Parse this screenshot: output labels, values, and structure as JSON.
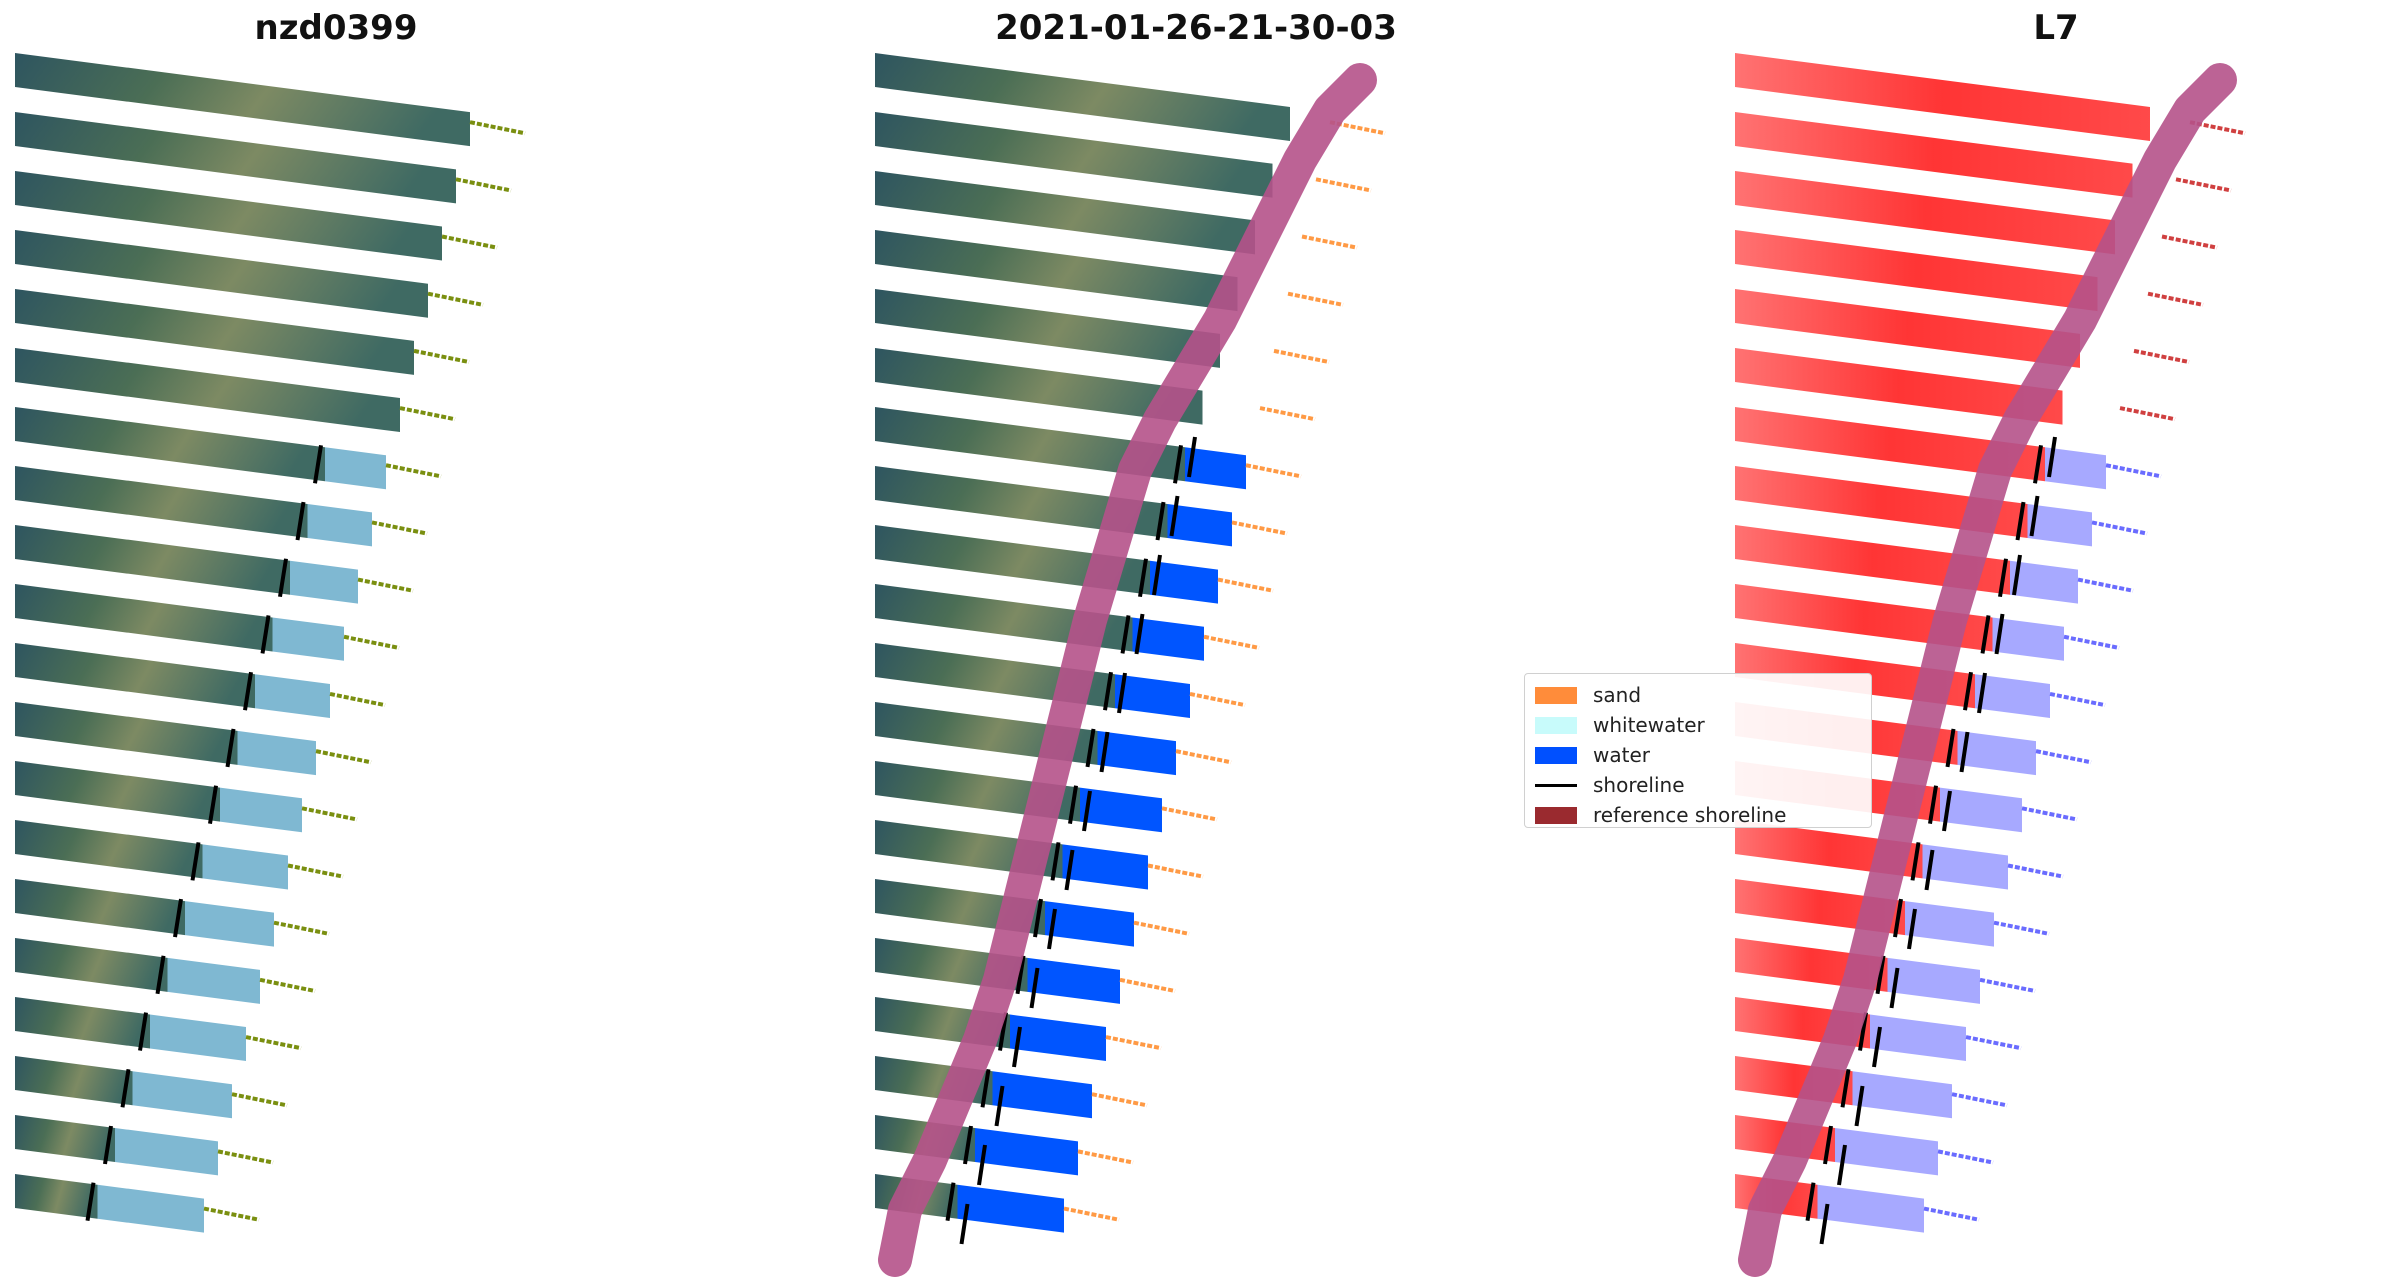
{
  "panels": [
    {
      "title": "nzd0399",
      "mode": "rgb"
    },
    {
      "title": "2021-01-26-21-30-03",
      "mode": "classified"
    },
    {
      "title": "L7",
      "mode": "mndwi"
    }
  ],
  "legend": {
    "items": [
      {
        "label": "sand",
        "color": "#ff8c3a",
        "kind": "patch"
      },
      {
        "label": "whitewater",
        "color": "#c8fbfb",
        "kind": "patch"
      },
      {
        "label": "water",
        "color": "#0050ff",
        "kind": "patch"
      },
      {
        "label": "shoreline",
        "color": "#000000",
        "kind": "line"
      },
      {
        "label": "reference shoreline",
        "color": "#9a2a2f",
        "kind": "patch"
      }
    ]
  },
  "colors": {
    "land_dark": "#2f5a5c",
    "land_green": "#5b7a4a",
    "land_tan": "#a79a78",
    "sea_light": "#7fb8d2",
    "offshore_dots": "#7a8f10",
    "water_class": "#0055ff",
    "sand_class": "#ff9a45",
    "reference_band": "#b5528a",
    "mndwi_land": "#ff2d2d",
    "mndwi_water": "#8a8cff"
  }
}
